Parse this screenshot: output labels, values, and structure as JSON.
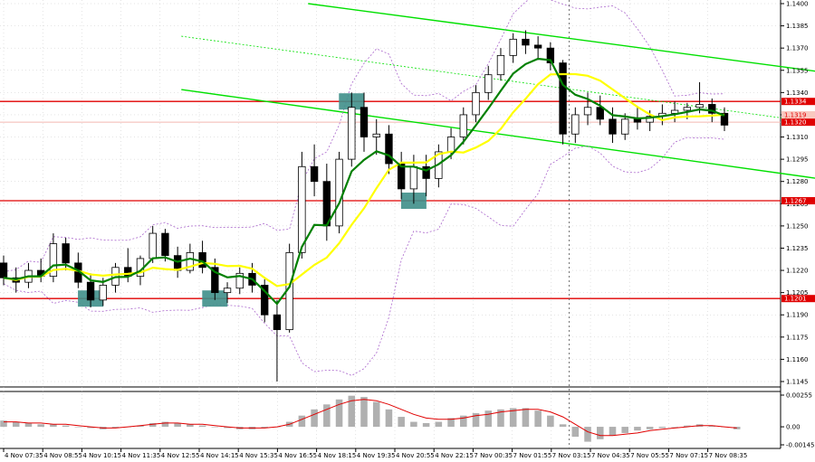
{
  "chart_data": {
    "type": "candlestick",
    "instrument_hint": "",
    "main_panel": {
      "y_ticks": [
        "1.1400",
        "1.1385",
        "1.1370",
        "1.1355",
        "1.1340",
        "1.1325",
        "1.1310",
        "1.1295",
        "1.1280",
        "1.1265",
        "1.1250",
        "1.1235",
        "1.1220",
        "1.1205",
        "1.1190",
        "1.1175",
        "1.1160",
        "1.1145"
      ],
      "y_range": [
        1.1145,
        1.14
      ],
      "horizontal_levels": [
        {
          "value": 1.1334,
          "label": "1.1334",
          "color": "#e00000"
        },
        {
          "value": 1.1267,
          "label": "1.1267",
          "color": "#e00000"
        },
        {
          "value": 1.1201,
          "label": "1.1201",
          "color": "#e00000"
        }
      ],
      "current_price": {
        "value": 1.132,
        "label": "1.1320"
      },
      "extra_price_label": "1.1319",
      "ohlc_points": [
        [
          1.1225,
          1.123,
          1.121,
          1.1215
        ],
        [
          1.1215,
          1.1222,
          1.1205,
          1.1212
        ],
        [
          1.1212,
          1.1225,
          1.1208,
          1.122
        ],
        [
          1.122,
          1.1228,
          1.1212,
          1.1216
        ],
        [
          1.1216,
          1.1245,
          1.1212,
          1.1238
        ],
        [
          1.1238,
          1.1242,
          1.122,
          1.1225
        ],
        [
          1.1225,
          1.1232,
          1.1208,
          1.1212
        ],
        [
          1.1212,
          1.1218,
          1.1195,
          1.12
        ],
        [
          1.12,
          1.1215,
          1.1196,
          1.121
        ],
        [
          1.121,
          1.1225,
          1.1205,
          1.1222
        ],
        [
          1.1222,
          1.1235,
          1.1212,
          1.1216
        ],
        [
          1.1216,
          1.123,
          1.121,
          1.1228
        ],
        [
          1.1228,
          1.125,
          1.1225,
          1.1245
        ],
        [
          1.1245,
          1.1248,
          1.1226,
          1.123
        ],
        [
          1.123,
          1.1236,
          1.1215,
          1.122
        ],
        [
          1.122,
          1.1238,
          1.1218,
          1.1232
        ],
        [
          1.1232,
          1.124,
          1.1218,
          1.1222
        ],
        [
          1.1222,
          1.1228,
          1.12,
          1.1205
        ],
        [
          1.1205,
          1.1212,
          1.1198,
          1.1208
        ],
        [
          1.1208,
          1.1222,
          1.1204,
          1.1218
        ],
        [
          1.1218,
          1.1225,
          1.1205,
          1.121
        ],
        [
          1.121,
          1.1214,
          1.1185,
          1.119
        ],
        [
          1.119,
          1.12,
          1.1145,
          1.118
        ],
        [
          1.118,
          1.1238,
          1.1178,
          1.1232
        ],
        [
          1.1232,
          1.13,
          1.1228,
          1.129
        ],
        [
          1.129,
          1.1305,
          1.127,
          1.128
        ],
        [
          1.128,
          1.1292,
          1.124,
          1.125
        ],
        [
          1.125,
          1.13,
          1.1245,
          1.1295
        ],
        [
          1.1295,
          1.134,
          1.129,
          1.133
        ],
        [
          1.133,
          1.134,
          1.13,
          1.131
        ],
        [
          1.131,
          1.1322,
          1.1298,
          1.1312
        ],
        [
          1.1312,
          1.1318,
          1.1285,
          1.1292
        ],
        [
          1.1292,
          1.13,
          1.1268,
          1.1275
        ],
        [
          1.1275,
          1.1298,
          1.1265,
          1.129
        ],
        [
          1.129,
          1.1298,
          1.127,
          1.1282
        ],
        [
          1.1282,
          1.1305,
          1.1276,
          1.13
        ],
        [
          1.13,
          1.1316,
          1.1295,
          1.131
        ],
        [
          1.131,
          1.133,
          1.1305,
          1.1325
        ],
        [
          1.1325,
          1.1345,
          1.132,
          1.134
        ],
        [
          1.134,
          1.1358,
          1.1335,
          1.1352
        ],
        [
          1.1352,
          1.137,
          1.1348,
          1.1365
        ],
        [
          1.1365,
          1.138,
          1.136,
          1.1376
        ],
        [
          1.1376,
          1.1382,
          1.1366,
          1.1372
        ],
        [
          1.1372,
          1.1378,
          1.1362,
          1.137
        ],
        [
          1.137,
          1.1374,
          1.1355,
          1.136
        ],
        [
          1.136,
          1.1362,
          1.1305,
          1.1312
        ],
        [
          1.1312,
          1.133,
          1.1306,
          1.1325
        ],
        [
          1.1325,
          1.134,
          1.1318,
          1.133
        ],
        [
          1.133,
          1.1338,
          1.1318,
          1.1322
        ],
        [
          1.1322,
          1.133,
          1.1306,
          1.1312
        ],
        [
          1.1312,
          1.1326,
          1.1308,
          1.1322
        ],
        [
          1.1322,
          1.133,
          1.1315,
          1.132
        ],
        [
          1.132,
          1.1328,
          1.1314,
          1.1324
        ],
        [
          1.1324,
          1.1332,
          1.1318,
          1.1326
        ],
        [
          1.1326,
          1.1334,
          1.132,
          1.1328
        ],
        [
          1.1328,
          1.1333,
          1.1322,
          1.133
        ],
        [
          1.133,
          1.1347,
          1.1326,
          1.1332
        ],
        [
          1.1332,
          1.1336,
          1.132,
          1.1326
        ],
        [
          1.1326,
          1.133,
          1.1314,
          1.1318
        ]
      ]
    },
    "indicator_panel": {
      "y_ticks": [
        "0.00255",
        "0.00",
        "-0.00145"
      ],
      "y_range": [
        -0.00145,
        0.00255
      ],
      "histogram": [
        0.0005,
        0.0004,
        0.0003,
        0.0002,
        0.0002,
        0.0001,
        0.0,
        -0.0001,
        -0.0002,
        -0.0001,
        0.0,
        0.0001,
        0.0003,
        0.0004,
        0.0003,
        0.0002,
        0.0001,
        0.0,
        -0.0001,
        -0.0002,
        -0.0002,
        -0.0001,
        0.0,
        0.0004,
        0.0009,
        0.0014,
        0.0018,
        0.0022,
        0.0025,
        0.0024,
        0.002,
        0.0014,
        0.0008,
        0.0004,
        0.0003,
        0.0004,
        0.0007,
        0.0009,
        0.0011,
        0.0013,
        0.0014,
        0.0015,
        0.0015,
        0.0013,
        0.0009,
        0.0002,
        -0.0008,
        -0.0012,
        -0.001,
        -0.0007,
        -0.0005,
        -0.0003,
        -0.0002,
        -0.0001,
        0.0,
        0.0001,
        0.0002,
        0.0001,
        0.0,
        -0.0002
      ],
      "signal": [
        0.0004,
        0.0004,
        0.0003,
        0.0003,
        0.0002,
        0.0002,
        0.0001,
        0.0,
        -0.0001,
        -0.0001,
        0.0,
        0.0001,
        0.0002,
        0.0003,
        0.0003,
        0.0002,
        0.0002,
        0.0001,
        0.0,
        -0.0001,
        -0.0001,
        -0.0001,
        0.0,
        0.0002,
        0.0006,
        0.001,
        0.0014,
        0.0018,
        0.0021,
        0.0022,
        0.0021,
        0.0018,
        0.0014,
        0.001,
        0.0007,
        0.0006,
        0.0006,
        0.0007,
        0.0009,
        0.001,
        0.0012,
        0.0013,
        0.0014,
        0.0014,
        0.0012,
        0.0008,
        0.0002,
        -0.0004,
        -0.0007,
        -0.0007,
        -0.0006,
        -0.0005,
        -0.0003,
        -0.0002,
        -0.0001,
        0.0,
        0.0001,
        0.0001,
        0.0,
        -0.0001
      ]
    },
    "x_ticks": [
      "4 Nov 07:35",
      "4 Nov 08:55",
      "4 Nov 10:15",
      "4 Nov 11:35",
      "4 Nov 12:55",
      "4 Nov 14:15",
      "4 Nov 15:35",
      "4 Nov 16:55",
      "4 Nov 18:15",
      "4 Nov 19:35",
      "4 Nov 20:55",
      "4 Nov 22:15",
      "7 Nov 00:35",
      "7 Nov 01:55",
      "7 Nov 03:15",
      "7 Nov 04:35",
      "7 Nov 05:55",
      "7 Nov 07:15",
      "7 Nov 08:35"
    ],
    "trend_channel": {
      "color": "#00e000",
      "upper": [
        {
          "x_index": 24.5,
          "price": 1.14
        },
        {
          "x_index": 80,
          "price": 1.1338
        }
      ],
      "lower": [
        {
          "x_index": 14.3,
          "price": 1.1342
        },
        {
          "x_index": 80,
          "price": 1.1265
        }
      ],
      "middle_dotted": [
        {
          "x_index": 14.3,
          "price": 1.1378
        },
        {
          "x_index": 80,
          "price": 1.1303
        }
      ]
    },
    "markers": [
      {
        "type": "highlight-box",
        "index": 7,
        "price": 1.1201
      },
      {
        "type": "highlight-box",
        "index": 17,
        "price": 1.1201
      },
      {
        "type": "highlight-box",
        "index": 28,
        "price": 1.1334
      },
      {
        "type": "highlight-box",
        "index": 33,
        "price": 1.1267
      }
    ],
    "session_separator_index": 45.5,
    "colors": {
      "candle": "#000000",
      "ma_fast": "#008000",
      "ma_slow": "#ffff00",
      "bollinger": "#aa66cc",
      "highlight_box": "#3f8f8a",
      "grid": "#c8c8c8",
      "current_price_fill": "#e00000"
    }
  }
}
